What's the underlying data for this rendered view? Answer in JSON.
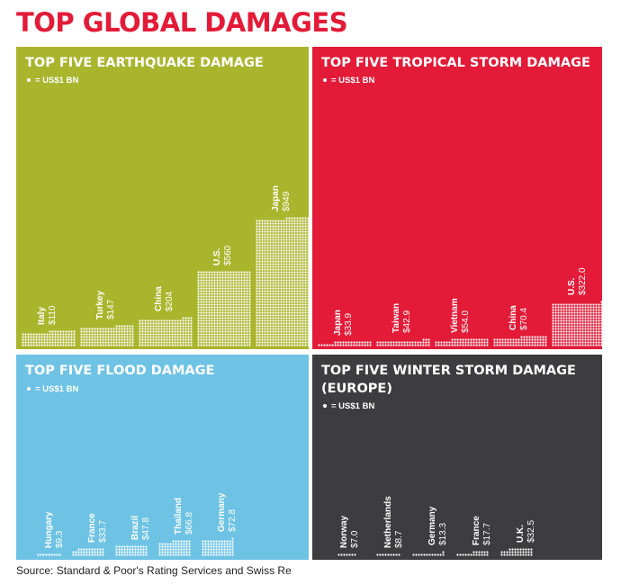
{
  "title": "TOP GLOBAL DAMAGES",
  "source": "Source: Standard & Poor's Rating Services and Swiss Re",
  "legend_label": "= US$1 BN",
  "colors": {
    "title": "#e31b38",
    "earthquake_bg": "#aab52e",
    "tropical_bg": "#e31b38",
    "flood_bg": "#6ec3e5",
    "winter_bg": "#3d3d3f",
    "dots": "#ffffff"
  },
  "chart_data": [
    {
      "type": "bar",
      "title": "TOP FIVE EARTHQUAKE DAMAGE",
      "categories": [
        "Italy",
        "Turkey",
        "China",
        "U.S.",
        "Japan"
      ],
      "values": [
        110,
        147,
        204,
        560,
        949
      ],
      "value_labels": [
        "$110",
        "$147",
        "$204",
        "$560",
        "$949"
      ]
    },
    {
      "type": "bar",
      "title": "TOP FIVE TROPICAL STORM DAMAGE",
      "categories": [
        "Japan",
        "Taiwan",
        "Vietnam",
        "China",
        "U.S."
      ],
      "values": [
        33.9,
        42.9,
        54.0,
        70.4,
        322.0
      ],
      "value_labels": [
        "$33.9",
        "$42.9",
        "$54.0",
        "$70.4",
        "$322.0"
      ]
    },
    {
      "type": "bar",
      "title": "TOP FIVE FLOOD DAMAGE",
      "categories": [
        "Hungary",
        "France",
        "Brazil",
        "Thailand",
        "Germany"
      ],
      "values": [
        9.3,
        33.7,
        47.8,
        66.8,
        72.8
      ],
      "value_labels": [
        "$9.3",
        "$33.7",
        "$47.8",
        "$66.8",
        "$72.8"
      ]
    },
    {
      "type": "bar",
      "title": "TOP FIVE WINTER STORM DAMAGE (EUROPE)",
      "categories": [
        "Norway",
        "Netherlands",
        "Germany",
        "France",
        "U.K."
      ],
      "values": [
        7.0,
        8.7,
        13.3,
        17.7,
        32.5
      ],
      "value_labels": [
        "$7.0",
        "$8.7",
        "$13.3",
        "$17.7",
        "$32.5"
      ]
    }
  ]
}
